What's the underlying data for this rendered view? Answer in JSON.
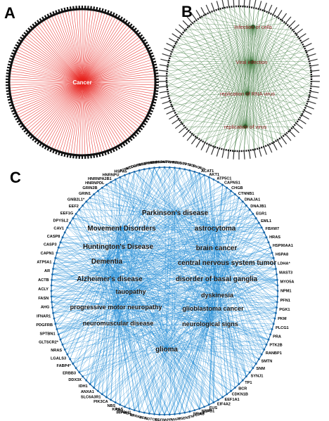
{
  "panels": {
    "a": {
      "letter": "A",
      "hub": "Cancer",
      "edge_color": "#e8231f",
      "node_color": "#111111"
    },
    "b": {
      "letter": "B",
      "hubs": [
        "Infection of cells",
        "Viral infection",
        "replication of RNA virus",
        "replication of virus"
      ],
      "edge_color": "#3f7a3f",
      "hub_text_color": "#8b1c1c",
      "node_color": "#111111"
    },
    "c": {
      "letter": "C",
      "edge_color": "#1f8ad6",
      "hub_text_color": "#111111",
      "hubs": [
        "Parkinson's disease",
        "Movement Disorders",
        "astrocytoma",
        "Huntington's Disease",
        "brain cancer",
        "Dementia",
        "central nervous system tumor",
        "Alzheimer's disease",
        "disorder of basal ganglia",
        "tauopathy",
        "dyskinesia",
        "progressive motor neuropathy",
        "glioblastoma cancer",
        "neuromuscular disease",
        "neurological signs",
        "glioma"
      ],
      "genes_right": [
        "ACAT1",
        "AKT1",
        "ATP5C1",
        "CAPNS1",
        "CHGB",
        "CTNNB1",
        "DNAJA1",
        "DNAJB1",
        "EGR1",
        "EML1",
        "FBXW7",
        "HRAS",
        "HSP90AA1",
        "HSPA8",
        "LDHA*",
        "MAST3",
        "MYO5A",
        "NPM1",
        "PFN1",
        "PGK1",
        "PKM",
        "PLCG1",
        "PRA",
        "PTK2B",
        "RANBP1",
        "SMTN",
        "SNM",
        "SYNJ1",
        "TP1",
        "BCR",
        "CDKN1B",
        "EEF1A1",
        "EIF4A2",
        "FUS",
        "HSPB1",
        "NRAS"
      ],
      "genes_left": [
        "HSPA5",
        "HNRNPU",
        "HNRNPA2B1",
        "HNRNPDL",
        "GRIN2B",
        "GRIN1",
        "GNB2L1*",
        "EEF2",
        "EEF1G",
        "DPYSL2",
        "CAV1",
        "CASP8",
        "CASP3",
        "CAPN1",
        "ATP5A1",
        "AR",
        "ACTB",
        "ACLY",
        "FASN",
        "AHG",
        "IFNAR1",
        "PDGFRB",
        "SPTBN1",
        "GLTSCR2*",
        "NRAS",
        "LGALS3",
        "FABP4*",
        "ERBB3",
        "DDX3X",
        "IDH1",
        "ANXA1",
        "SLC6A3R1",
        "PIK3CA",
        "NBS",
        "KRAS",
        "IMPDH1"
      ],
      "genes_top": [
        "PTPN11",
        "MTOR",
        "DDIT3",
        "RAC1",
        "HNRNPK",
        "PPARG",
        "ERBB2",
        "PARK7",
        "AKT1",
        "PARK2",
        "RPL5",
        "SOD1",
        "TP53",
        "VCP",
        "SNCA",
        "FUS"
      ],
      "genes_bottom": [
        "IGF1R",
        "HSP90",
        "LRRK2",
        "NEFL",
        "NOTCH1",
        "EGFR",
        "APP",
        "MAPT",
        "PSEN1",
        "TNF",
        "CDK4",
        "PTEN"
      ]
    }
  }
}
